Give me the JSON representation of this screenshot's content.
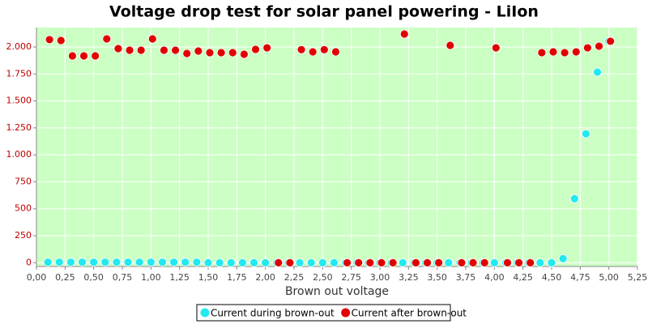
{
  "chart_data": {
    "type": "scatter",
    "title": "Voltage drop test for solar panel powering -  LiIon",
    "x_label": "Brown out voltage",
    "x": [
      0.1,
      0.2,
      0.3,
      0.4,
      0.5,
      0.6,
      0.7,
      0.8,
      0.9,
      1.0,
      1.1,
      1.2,
      1.3,
      1.4,
      1.5,
      1.6,
      1.7,
      1.8,
      1.9,
      2.0,
      2.1,
      2.2,
      2.3,
      2.4,
      2.5,
      2.6,
      2.7,
      2.8,
      2.9,
      3.0,
      3.1,
      3.2,
      3.3,
      3.4,
      3.5,
      3.6,
      3.7,
      3.8,
      3.9,
      4.0,
      4.1,
      4.2,
      4.3,
      4.4,
      4.5,
      4.6,
      4.7,
      4.8,
      4.9,
      5.0
    ],
    "series": [
      {
        "name": "Current during brown-out",
        "color": "#22e8f0",
        "values": [
          5,
          5,
          5,
          5,
          5,
          5,
          5,
          5,
          5,
          5,
          5,
          5,
          5,
          5,
          0,
          0,
          0,
          0,
          0,
          0,
          0,
          0,
          0,
          0,
          0,
          0,
          0,
          0,
          0,
          0,
          0,
          0,
          0,
          0,
          0,
          0,
          0,
          0,
          0,
          0,
          0,
          0,
          0,
          0,
          0,
          38,
          594,
          1195,
          1767,
          2053
        ]
      },
      {
        "name": "Current after brown-out",
        "color": "#e00000",
        "values": [
          2068,
          2060,
          1917,
          1917,
          1917,
          2075,
          1985,
          1970,
          1970,
          2075,
          1970,
          1970,
          1940,
          1962,
          1947,
          1947,
          1947,
          1932,
          1977,
          1992,
          0,
          0,
          1975,
          1955,
          1975,
          1955,
          0,
          0,
          0,
          0,
          0,
          2120,
          0,
          0,
          0,
          2015,
          0,
          0,
          0,
          1992,
          0,
          0,
          0,
          1947,
          1955,
          1947,
          1955,
          1992,
          2007,
          2053
        ]
      }
    ],
    "xlim": [
      0,
      5.25
    ],
    "xticks": [
      {
        "value": 0,
        "label": "0,00"
      },
      {
        "value": 0.25,
        "label": "0,25"
      },
      {
        "value": 0.5,
        "label": "0,50"
      },
      {
        "value": 0.75,
        "label": "0,75"
      },
      {
        "value": 1,
        "label": "1,00"
      },
      {
        "value": 1.25,
        "label": "1,25"
      },
      {
        "value": 1.5,
        "label": "1,50"
      },
      {
        "value": 1.75,
        "label": "1,75"
      },
      {
        "value": 2,
        "label": "2,00"
      },
      {
        "value": 2.25,
        "label": "2,25"
      },
      {
        "value": 2.5,
        "label": "2,50"
      },
      {
        "value": 2.75,
        "label": "2,75"
      },
      {
        "value": 3,
        "label": "3,00"
      },
      {
        "value": 3.25,
        "label": "3,25"
      },
      {
        "value": 3.5,
        "label": "3,50"
      },
      {
        "value": 3.75,
        "label": "3,75"
      },
      {
        "value": 4,
        "label": "4,00"
      },
      {
        "value": 4.25,
        "label": "4,25"
      },
      {
        "value": 4.5,
        "label": "4,50"
      },
      {
        "value": 4.75,
        "label": "4,75"
      },
      {
        "value": 5,
        "label": "5,00"
      },
      {
        "value": 5.25,
        "label": "5,25"
      }
    ],
    "ylim": [
      -35,
      2180
    ],
    "yticks": [
      0,
      250,
      {
        "value": 500,
        "label": "500"
      },
      {
        "value": 750,
        "label": "750"
      },
      {
        "value": 1000,
        "label": "1.000"
      },
      {
        "value": 1250,
        "label": "1.250"
      },
      {
        "value": 1500,
        "label": "1.500"
      },
      {
        "value": 1750,
        "label": "1.750"
      },
      {
        "value": 2000,
        "label": "2.000"
      }
    ],
    "grid": true,
    "legend": "bottom"
  }
}
